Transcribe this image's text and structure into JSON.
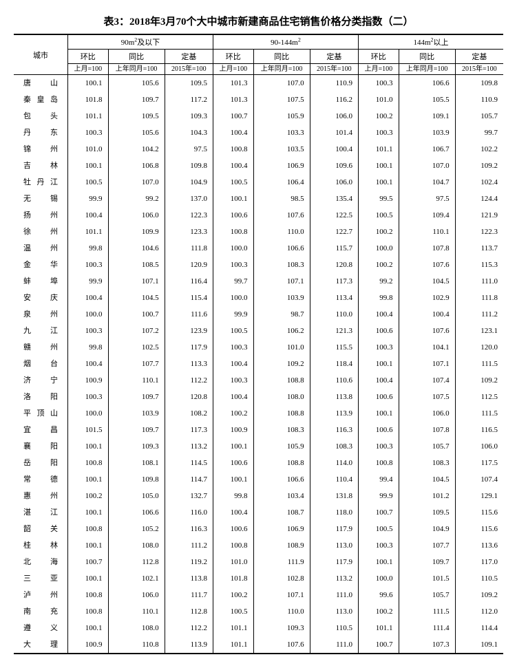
{
  "title": "表3：2018年3月70个大中城市新建商品住宅销售价格分类指数（二）",
  "header": {
    "city": "城市",
    "group1": "90m²及以下",
    "group2": "90-144m²",
    "group3": "144m²以上",
    "hb": "环比",
    "tb": "同比",
    "dj": "定基",
    "hb_sub": "上月=100",
    "tb_sub": "上年同月=100",
    "dj_sub": "2015年=100"
  },
  "cities": [
    "唐山",
    "秦皇岛",
    "包头",
    "丹东",
    "锦州",
    "吉林",
    "牡丹江",
    "无锡",
    "扬州",
    "徐州",
    "温州",
    "金华",
    "蚌埠",
    "安庆",
    "泉州",
    "九江",
    "赣州",
    "烟台",
    "济宁",
    "洛阳",
    "平顶山",
    "宜昌",
    "襄阳",
    "岳阳",
    "常德",
    "惠州",
    "湛江",
    "韶关",
    "桂林",
    "北海",
    "三亚",
    "泸州",
    "南充",
    "遵义",
    "大理"
  ],
  "rows": [
    [
      100.1,
      105.6,
      109.5,
      101.3,
      107.0,
      110.9,
      100.3,
      106.6,
      109.8
    ],
    [
      101.8,
      109.7,
      117.2,
      101.3,
      107.5,
      116.2,
      101.0,
      105.5,
      110.9
    ],
    [
      101.1,
      109.5,
      109.3,
      100.7,
      105.9,
      106.0,
      100.2,
      109.1,
      105.7
    ],
    [
      100.3,
      105.6,
      104.3,
      100.4,
      103.3,
      101.4,
      100.3,
      103.9,
      99.7
    ],
    [
      101.0,
      104.2,
      97.5,
      100.8,
      103.5,
      100.4,
      101.1,
      106.7,
      102.2
    ],
    [
      100.1,
      106.8,
      109.8,
      100.4,
      106.9,
      109.6,
      100.1,
      107.0,
      109.2
    ],
    [
      100.5,
      107.0,
      104.9,
      100.5,
      106.4,
      106.0,
      100.1,
      104.7,
      102.4
    ],
    [
      99.9,
      99.2,
      137.0,
      100.1,
      98.5,
      135.4,
      99.5,
      97.5,
      124.4
    ],
    [
      100.4,
      106.0,
      122.3,
      100.6,
      107.6,
      122.5,
      100.5,
      109.4,
      121.9
    ],
    [
      101.1,
      109.9,
      123.3,
      100.8,
      110.0,
      122.7,
      100.2,
      110.1,
      122.3
    ],
    [
      99.8,
      104.6,
      111.8,
      100.0,
      106.6,
      115.7,
      100.0,
      107.8,
      113.7
    ],
    [
      100.3,
      108.5,
      120.9,
      100.3,
      108.3,
      120.8,
      100.2,
      107.6,
      115.3
    ],
    [
      99.9,
      107.1,
      116.4,
      99.7,
      107.1,
      117.3,
      99.2,
      104.5,
      111.0
    ],
    [
      100.4,
      104.5,
      115.4,
      100.0,
      103.9,
      113.4,
      99.8,
      102.9,
      111.8
    ],
    [
      100.0,
      100.7,
      111.6,
      99.9,
      98.7,
      110.0,
      100.4,
      100.4,
      111.2
    ],
    [
      100.3,
      107.2,
      123.9,
      100.5,
      106.2,
      121.3,
      100.6,
      107.6,
      123.1
    ],
    [
      99.8,
      102.5,
      117.9,
      100.3,
      101.0,
      115.5,
      100.3,
      104.1,
      120.0
    ],
    [
      100.4,
      107.7,
      113.3,
      100.4,
      109.2,
      118.4,
      100.1,
      107.1,
      111.5
    ],
    [
      100.9,
      110.1,
      112.2,
      100.3,
      108.8,
      110.6,
      100.4,
      107.4,
      109.2
    ],
    [
      100.3,
      109.7,
      120.8,
      100.4,
      108.0,
      113.8,
      100.6,
      107.5,
      112.5
    ],
    [
      100.0,
      103.9,
      108.2,
      100.2,
      108.8,
      113.9,
      100.1,
      106.0,
      111.5
    ],
    [
      101.5,
      109.7,
      117.3,
      100.9,
      108.3,
      116.3,
      100.6,
      107.8,
      116.5
    ],
    [
      100.1,
      109.3,
      113.2,
      100.1,
      105.9,
      108.3,
      100.3,
      105.7,
      106.0
    ],
    [
      100.8,
      108.1,
      114.5,
      100.6,
      108.8,
      114.0,
      100.8,
      108.3,
      117.5
    ],
    [
      100.1,
      109.8,
      114.7,
      100.1,
      106.6,
      110.4,
      99.4,
      104.5,
      107.4
    ],
    [
      100.2,
      105.0,
      132.7,
      99.8,
      103.4,
      131.8,
      99.9,
      101.2,
      129.1
    ],
    [
      100.1,
      106.6,
      116.0,
      100.4,
      108.7,
      118.0,
      100.7,
      109.5,
      115.6
    ],
    [
      100.8,
      105.2,
      116.3,
      100.6,
      106.9,
      117.9,
      100.5,
      104.9,
      115.6
    ],
    [
      100.1,
      108.0,
      111.2,
      100.8,
      108.9,
      113.0,
      100.3,
      107.7,
      113.6
    ],
    [
      100.7,
      112.8,
      119.2,
      101.0,
      111.9,
      117.9,
      100.1,
      109.7,
      117.0
    ],
    [
      100.1,
      102.1,
      113.8,
      101.8,
      102.8,
      113.2,
      100.0,
      101.5,
      110.5
    ],
    [
      100.8,
      106.0,
      111.7,
      100.2,
      107.1,
      111.0,
      99.6,
      105.7,
      109.2
    ],
    [
      100.8,
      110.1,
      112.8,
      100.5,
      110.0,
      113.0,
      100.2,
      111.5,
      112.0
    ],
    [
      100.1,
      108.0,
      112.2,
      101.1,
      109.3,
      110.5,
      101.1,
      111.4,
      114.4
    ],
    [
      100.9,
      110.8,
      113.9,
      101.1,
      107.6,
      111.0,
      100.7,
      107.3,
      109.1
    ]
  ],
  "decimals": 1
}
